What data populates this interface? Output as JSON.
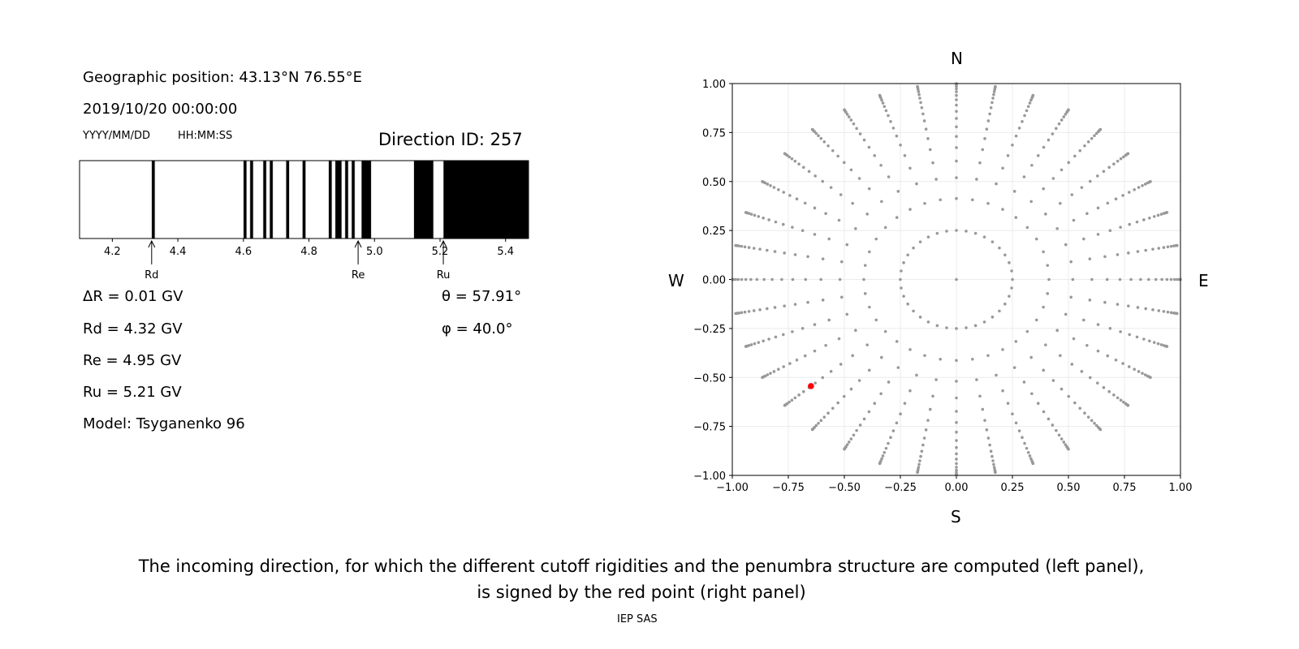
{
  "left_panel": {
    "geo_position": "Geographic position: 43.13°N 76.55°E",
    "datetime": "2019/10/20 00:00:00",
    "date_format": "YYYY/MM/DD",
    "time_format": "HH:MM:SS",
    "direction_id": "Direction ID: 257",
    "delta_r": "ΔR = 0.01 GV",
    "rd": "Rd = 4.32 GV",
    "re": "Re = 4.95 GV",
    "ru": "Ru = 5.21 GV",
    "model": "Model: Tsyganenko 96",
    "theta": "θ = 57.91°",
    "phi": "φ = 40.0°"
  },
  "chart_data": [
    {
      "type": "bar",
      "subtype": "penumbra-strip",
      "xlim": [
        4.1,
        5.47
      ],
      "xticks": [
        "4.2",
        "4.4",
        "4.6",
        "4.8",
        "5.0",
        "5.2",
        "5.4"
      ],
      "xtick_values": [
        4.2,
        4.4,
        4.6,
        4.8,
        5.0,
        5.2,
        5.4
      ],
      "forbidden_bands": [
        [
          4.32,
          4.33
        ],
        [
          4.6,
          4.61
        ],
        [
          4.62,
          4.63
        ],
        [
          4.66,
          4.67
        ],
        [
          4.68,
          4.69
        ],
        [
          4.73,
          4.74
        ],
        [
          4.78,
          4.79
        ],
        [
          4.86,
          4.87
        ],
        [
          4.88,
          4.9
        ],
        [
          4.91,
          4.92
        ],
        [
          4.93,
          4.94
        ],
        [
          4.96,
          4.99
        ],
        [
          5.12,
          5.18
        ],
        [
          5.21,
          5.47
        ]
      ],
      "band_color": "#000000",
      "allowed_color": "#ffffff",
      "markers": [
        {
          "label": "Rd",
          "value": 4.32
        },
        {
          "label": "Re",
          "value": 4.95
        },
        {
          "label": "Ru",
          "value": 5.21
        }
      ]
    },
    {
      "type": "scatter",
      "subtype": "direction-grid",
      "xlim": [
        -1,
        1
      ],
      "ylim": [
        -1,
        1
      ],
      "xticks": [
        "−1.00",
        "−0.75",
        "−0.50",
        "−0.25",
        "0.00",
        "0.25",
        "0.50",
        "0.75",
        "1.00"
      ],
      "yticks": [
        "−1.00",
        "−0.75",
        "−0.50",
        "−0.25",
        "0.00",
        "0.25",
        "0.50",
        "0.75",
        "1.00"
      ],
      "tick_values": [
        -1,
        -0.75,
        -0.5,
        -0.25,
        0,
        0.25,
        0.5,
        0.75,
        1
      ],
      "grid": true,
      "compass": {
        "north": "N",
        "south": "S",
        "west": "W",
        "east": "E"
      },
      "grid_points": {
        "projection": "x = sin(zenith)·cos(azimuth), y = sin(zenith)·sin(azimuth)",
        "center_point": true,
        "ring_zenith_deg": 14.5,
        "ring_azimuth_step_deg": 10,
        "spoke_azimuth_step_deg": 10,
        "spoke_zenith_deg": [
          24.4,
          31.3,
          37.2,
          42.3,
          46.9,
          51.2,
          55.3,
          59.1,
          62.9,
          66.5,
          70.0,
          73.4,
          76.8,
          80.2,
          83.4,
          86.7,
          90.0
        ],
        "color": "#999999"
      },
      "selected_point": {
        "zenith_deg": 57.91,
        "azimuth_deg": 40.0,
        "x": -0.649,
        "y": -0.544,
        "color": "#ff0000"
      }
    }
  ],
  "caption": {
    "line1": "The incoming direction, for which the different cutoff rigidities and the penumbra structure are computed (left panel),",
    "line2": "is signed by the red point (right panel)"
  },
  "credit": "IEP SAS"
}
